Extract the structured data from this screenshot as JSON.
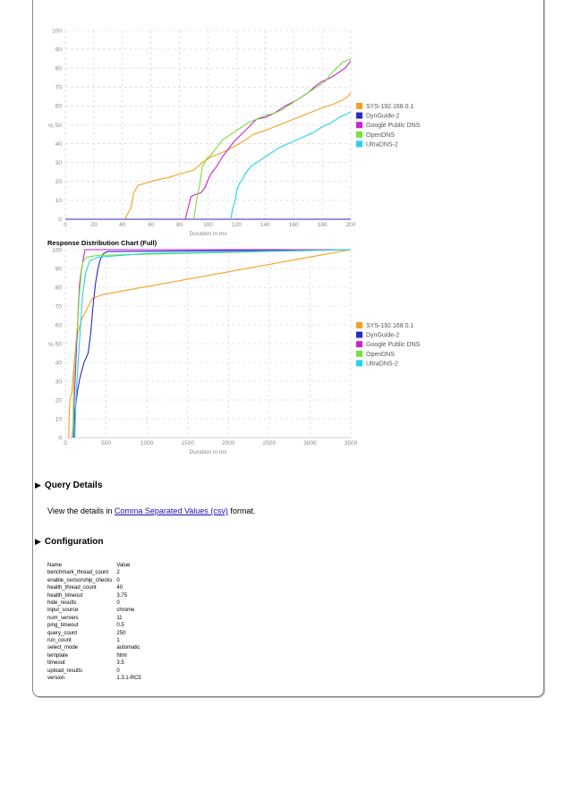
{
  "colors": {
    "SYS-192.168.0.1": "#f5a01f",
    "DynGuide-2": "#2b28c8",
    "Google Public DNS": "#cc22cc",
    "OpenDNS": "#77e03a",
    "UltraDNS-2": "#22d3ea"
  },
  "chart_data": [
    {
      "type": "line",
      "title": "",
      "xlabel": "Duration in ms",
      "ylabel": "%",
      "xlim": [
        0,
        200
      ],
      "ylim": [
        0,
        100
      ],
      "xticks": [
        0,
        20,
        40,
        60,
        80,
        100,
        120,
        140,
        160,
        180,
        200
      ],
      "yticks": [
        0,
        10,
        20,
        30,
        40,
        50,
        60,
        70,
        80,
        90,
        100
      ],
      "series": [
        {
          "name": "SYS-192.168.0.1",
          "points": [
            [
              42,
              0
            ],
            [
              43,
              2
            ],
            [
              46,
              6
            ],
            [
              48,
              14
            ],
            [
              51,
              18
            ],
            [
              56,
              19
            ],
            [
              60,
              20
            ],
            [
              65,
              21
            ],
            [
              72,
              22
            ],
            [
              80,
              24
            ],
            [
              90,
              26
            ],
            [
              96,
              30
            ],
            [
              102,
              33
            ],
            [
              112,
              36
            ],
            [
              122,
              40
            ],
            [
              132,
              45
            ],
            [
              140,
              47
            ],
            [
              150,
              50
            ],
            [
              160,
              53
            ],
            [
              170,
              56
            ],
            [
              180,
              59
            ],
            [
              188,
              61
            ],
            [
              194,
              63
            ],
            [
              198,
              65
            ],
            [
              200,
              67
            ]
          ]
        },
        {
          "name": "DynGuide-2",
          "points": [
            [
              0,
              0
            ],
            [
              200,
              0
            ]
          ]
        },
        {
          "name": "Google Public DNS",
          "points": [
            [
              84,
              0
            ],
            [
              86,
              6
            ],
            [
              88,
              12
            ],
            [
              91,
              13
            ],
            [
              95,
              14
            ],
            [
              98,
              17
            ],
            [
              100,
              21
            ],
            [
              102,
              24
            ],
            [
              106,
              28
            ],
            [
              110,
              33
            ],
            [
              114,
              37
            ],
            [
              118,
              41
            ],
            [
              122,
              44
            ],
            [
              126,
              47
            ],
            [
              130,
              50
            ],
            [
              134,
              53
            ],
            [
              140,
              54
            ],
            [
              146,
              56
            ],
            [
              154,
              60
            ],
            [
              162,
              63
            ],
            [
              170,
              67
            ],
            [
              176,
              71
            ],
            [
              180,
              73
            ],
            [
              186,
              75
            ],
            [
              192,
              78
            ],
            [
              196,
              80
            ],
            [
              200,
              84
            ]
          ]
        },
        {
          "name": "OpenDNS",
          "points": [
            [
              90,
              0
            ],
            [
              91,
              5
            ],
            [
              92,
              10
            ],
            [
              94,
              18
            ],
            [
              96,
              28
            ],
            [
              99,
              32
            ],
            [
              102,
              34
            ],
            [
              106,
              38
            ],
            [
              110,
              42
            ],
            [
              116,
              45
            ],
            [
              122,
              48
            ],
            [
              128,
              51
            ],
            [
              134,
              53
            ],
            [
              140,
              55
            ],
            [
              146,
              56
            ],
            [
              152,
              58
            ],
            [
              158,
              61
            ],
            [
              164,
              64
            ],
            [
              170,
              67
            ],
            [
              176,
              70
            ],
            [
              182,
              73
            ],
            [
              186,
              77
            ],
            [
              190,
              80
            ],
            [
              194,
              83
            ],
            [
              200,
              85
            ]
          ]
        },
        {
          "name": "UltraDNS-2",
          "points": [
            [
              116,
              0
            ],
            [
              117,
              5
            ],
            [
              119,
              10
            ],
            [
              120,
              15
            ],
            [
              122,
              19
            ],
            [
              124,
              21
            ],
            [
              126,
              24
            ],
            [
              128,
              26
            ],
            [
              130,
              28
            ],
            [
              134,
              30
            ],
            [
              138,
              32
            ],
            [
              142,
              34
            ],
            [
              146,
              36
            ],
            [
              150,
              38
            ],
            [
              156,
              40
            ],
            [
              162,
              42
            ],
            [
              168,
              44
            ],
            [
              174,
              46
            ],
            [
              180,
              49
            ],
            [
              186,
              51
            ],
            [
              192,
              54
            ],
            [
              198,
              56
            ],
            [
              200,
              57
            ]
          ]
        }
      ],
      "legend": [
        "SYS-192.168.0.1",
        "DynGuide-2",
        "Google Public DNS",
        "OpenDNS",
        "UltraDNS-2"
      ],
      "legend_position": "right"
    },
    {
      "type": "line",
      "title": "Response Distribution Chart (Full)",
      "xlabel": "Duration in ms",
      "ylabel": "%",
      "xlim": [
        0,
        3500
      ],
      "ylim": [
        0,
        100
      ],
      "xticks": [
        0,
        500,
        1000,
        1500,
        2000,
        2500,
        3000,
        3500
      ],
      "yticks": [
        0,
        10,
        20,
        30,
        40,
        50,
        60,
        70,
        80,
        90,
        100
      ],
      "series": [
        {
          "name": "SYS-192.168.0.1",
          "points": [
            [
              42,
              0
            ],
            [
              44,
              5
            ],
            [
              46,
              10
            ],
            [
              50,
              15
            ],
            [
              56,
              20
            ],
            [
              80,
              24
            ],
            [
              100,
              35
            ],
            [
              120,
              45
            ],
            [
              150,
              55
            ],
            [
              200,
              63
            ],
            [
              260,
              68
            ],
            [
              330,
              74
            ],
            [
              450,
              76
            ],
            [
              700,
              78
            ],
            [
              3500,
              100
            ]
          ]
        },
        {
          "name": "DynGuide-2",
          "points": [
            [
              105,
              0
            ],
            [
              120,
              15
            ],
            [
              150,
              25
            ],
            [
              180,
              32
            ],
            [
              230,
              40
            ],
            [
              280,
              45
            ],
            [
              310,
              55
            ],
            [
              340,
              70
            ],
            [
              370,
              82
            ],
            [
              400,
              90
            ],
            [
              430,
              95
            ],
            [
              470,
              98
            ],
            [
              520,
              99
            ],
            [
              3500,
              100
            ]
          ]
        },
        {
          "name": "Google Public DNS",
          "points": [
            [
              84,
              0
            ],
            [
              100,
              10
            ],
            [
              120,
              30
            ],
            [
              140,
              50
            ],
            [
              160,
              70
            ],
            [
              175,
              82
            ],
            [
              200,
              90
            ],
            [
              240,
              100
            ],
            [
              3500,
              100
            ]
          ]
        },
        {
          "name": "OpenDNS",
          "points": [
            [
              90,
              0
            ],
            [
              105,
              30
            ],
            [
              120,
              45
            ],
            [
              150,
              60
            ],
            [
              170,
              75
            ],
            [
              190,
              85
            ],
            [
              210,
              93
            ],
            [
              260,
              96
            ],
            [
              400,
              97
            ],
            [
              3500,
              100
            ]
          ]
        },
        {
          "name": "UltraDNS-2",
          "points": [
            [
              116,
              0
            ],
            [
              130,
              20
            ],
            [
              150,
              35
            ],
            [
              180,
              55
            ],
            [
              210,
              75
            ],
            [
              250,
              88
            ],
            [
              300,
              94
            ],
            [
              400,
              96
            ],
            [
              1000,
              98
            ],
            [
              3500,
              100
            ]
          ]
        }
      ],
      "legend": [
        "SYS-192.168.0.1",
        "DynGuide-2",
        "Google Public DNS",
        "OpenDNS",
        "UltraDNS-2"
      ],
      "legend_position": "right"
    }
  ],
  "sections": {
    "query_details": {
      "label": "Query Details",
      "text_before": "View the details in",
      "link_text": "Comma Separated Values (csv)",
      "text_after": "format."
    },
    "configuration": {
      "label": "Configuration",
      "headers": [
        "Name",
        "Value"
      ],
      "rows": [
        [
          "benchmark_thread_count",
          "2"
        ],
        [
          "enable_censorship_checks",
          "0"
        ],
        [
          "health_thread_count",
          "40"
        ],
        [
          "health_timeout",
          "3.75"
        ],
        [
          "hide_results",
          "0"
        ],
        [
          "input_source",
          "chrome"
        ],
        [
          "num_servers",
          "11"
        ],
        [
          "ping_timeout",
          "0.5"
        ],
        [
          "query_count",
          "250"
        ],
        [
          "run_count",
          "1"
        ],
        [
          "select_mode",
          "automatic"
        ],
        [
          "template",
          "html"
        ],
        [
          "timeout",
          "3.5"
        ],
        [
          "upload_results",
          "0"
        ],
        [
          "version",
          "1.3.1-RC5"
        ]
      ]
    }
  }
}
